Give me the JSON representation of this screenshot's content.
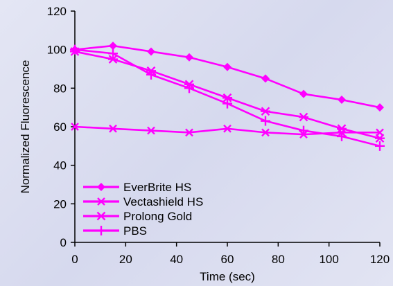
{
  "chart_data": {
    "type": "line",
    "title": "",
    "xlabel": "Time (sec)",
    "ylabel": "Normalized Fluorescence",
    "xlim": [
      0,
      120
    ],
    "ylim": [
      0,
      120
    ],
    "xticks": [
      0,
      20,
      40,
      60,
      80,
      100,
      120
    ],
    "yticks": [
      0,
      20,
      40,
      60,
      80,
      100,
      120
    ],
    "grid": false,
    "legend_position": "bottom-left",
    "line_color": "#ff00ff",
    "series": [
      {
        "name": "EverBrite HS",
        "marker": "diamond",
        "x": [
          0,
          15,
          30,
          45,
          60,
          75,
          90,
          105,
          120
        ],
        "y": [
          100,
          102,
          99,
          96,
          91,
          85,
          77,
          74,
          70
        ]
      },
      {
        "name": "Vectashield HS",
        "marker": "x",
        "x": [
          0,
          15,
          30,
          45,
          60,
          75,
          90,
          105,
          120
        ],
        "y": [
          60,
          59,
          58,
          57,
          59,
          57,
          56,
          57,
          57
        ]
      },
      {
        "name": "Prolong Gold",
        "marker": "asterisk",
        "x": [
          0,
          15,
          30,
          45,
          60,
          75,
          90,
          105,
          120
        ],
        "y": [
          99,
          95,
          89,
          82,
          75,
          68,
          65,
          59,
          54
        ]
      },
      {
        "name": "PBS",
        "marker": "plus",
        "x": [
          0,
          15,
          30,
          45,
          60,
          75,
          90,
          105,
          120
        ],
        "y": [
          100,
          98,
          87,
          80,
          72,
          63,
          58,
          55,
          50
        ]
      }
    ]
  }
}
